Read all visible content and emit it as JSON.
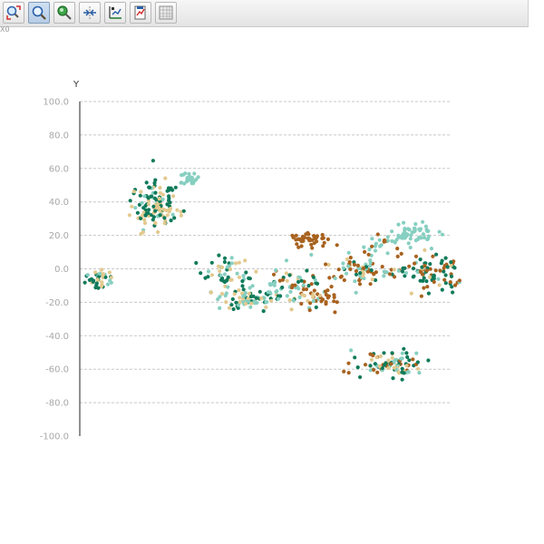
{
  "toolbar": {
    "buttons": [
      {
        "icon": "zoom-in-red-arrow-icon"
      },
      {
        "icon": "magnifier-icon",
        "active": true
      },
      {
        "icon": "zoom-green-icon"
      },
      {
        "icon": "fit-arrows-icon"
      },
      {
        "icon": "axes-scale-icon"
      },
      {
        "icon": "save-chart-icon"
      },
      {
        "icon": "grid-table-icon"
      }
    ]
  },
  "origin_label": "X0",
  "chart_data": {
    "type": "scatter",
    "title": "",
    "xlabel": "",
    "ylabel": "Y",
    "ylim": [
      -100,
      100
    ],
    "y_ticks": [
      "100.0",
      "80.0",
      "60.0",
      "40.0",
      "20.0",
      "0.0",
      "-20.0",
      "-40.0",
      "-60.0",
      "-80.0",
      "-100.0"
    ],
    "grid": "horizontal dashed",
    "legend": "none",
    "x_axis_visible": false,
    "colors": [
      "#e3c98e",
      "#0f7a5a",
      "#86cfc1",
      "#a8621f"
    ],
    "clusters": [
      {
        "x": 10,
        "y": -6,
        "sx": 4,
        "sy": 3,
        "n": 40,
        "mix": [
          0.45,
          0.35,
          0.2,
          0
        ]
      },
      {
        "x": 38,
        "y": 38,
        "sx": 6,
        "sy": 7,
        "n": 130,
        "mix": [
          0.45,
          0.45,
          0.1,
          0
        ]
      },
      {
        "x": 56,
        "y": 53,
        "sx": 2.5,
        "sy": 2,
        "n": 22,
        "mix": [
          0,
          0,
          1,
          0
        ]
      },
      {
        "x": 75,
        "y": -4,
        "sx": 5,
        "sy": 6,
        "n": 60,
        "mix": [
          0.3,
          0.4,
          0.3,
          0
        ]
      },
      {
        "x": 86,
        "y": -18,
        "sx": 8,
        "sy": 3,
        "n": 70,
        "mix": [
          0.25,
          0.3,
          0.45,
          0
        ]
      },
      {
        "x": 108,
        "y": -10,
        "sx": 7,
        "sy": 6,
        "n": 65,
        "mix": [
          0.2,
          0.25,
          0.35,
          0.2
        ]
      },
      {
        "x": 115,
        "y": 17,
        "sx": 5,
        "sy": 2.5,
        "n": 40,
        "mix": [
          0,
          0,
          0,
          1
        ]
      },
      {
        "x": 120,
        "y": -18,
        "sx": 4,
        "sy": 4,
        "n": 28,
        "mix": [
          0.1,
          0.1,
          0.1,
          0.7
        ]
      },
      {
        "x": 140,
        "y": 0,
        "sx": 8,
        "sy": 5,
        "n": 75,
        "mix": [
          0.15,
          0.2,
          0.25,
          0.4
        ]
      },
      {
        "x": 150,
        "y": 15,
        "sx": 6,
        "sy": 3,
        "n": 24,
        "mix": [
          0,
          0,
          0.7,
          0.3
        ]
      },
      {
        "x": 168,
        "y": 21,
        "sx": 6,
        "sy": 3,
        "n": 55,
        "mix": [
          0,
          0,
          1,
          0
        ]
      },
      {
        "x": 175,
        "y": -3,
        "sx": 8,
        "sy": 6,
        "n": 85,
        "mix": [
          0.15,
          0.35,
          0.1,
          0.4
        ]
      },
      {
        "x": 155,
        "y": -57,
        "sx": 9,
        "sy": 4,
        "n": 90,
        "mix": [
          0.15,
          0.3,
          0.25,
          0.3
        ]
      }
    ]
  }
}
